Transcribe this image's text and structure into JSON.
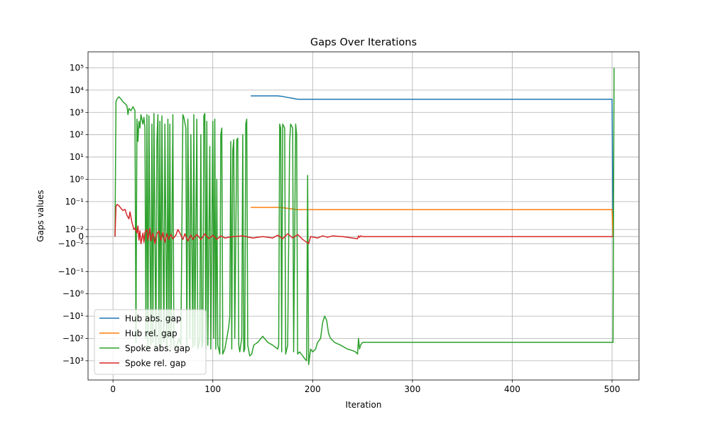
{
  "chart_data": {
    "type": "line",
    "title": "Gaps Over Iterations",
    "x_label": "Iteration",
    "y_label": "Gaps values",
    "yscale": "symlog",
    "linthresh": 0.035,
    "grid": true,
    "legend": "lower left",
    "xlim": [
      -25,
      527
    ],
    "xticks": [
      0,
      100,
      200,
      300,
      400,
      500
    ],
    "ylim": [
      -7300,
      520000
    ],
    "yticks": [
      {
        "value": 100000,
        "label": "10⁵"
      },
      {
        "value": 10000,
        "label": "10⁴"
      },
      {
        "value": 1000,
        "label": "10³"
      },
      {
        "value": 100,
        "label": "10²"
      },
      {
        "value": 10,
        "label": "10¹"
      },
      {
        "value": 1,
        "label": "10⁰"
      },
      {
        "value": 0.1,
        "label": "10⁻¹"
      },
      {
        "value": 0.01,
        "label": "10⁻²"
      },
      0,
      {
        "value": -0.01,
        "label": "−10⁻²"
      },
      {
        "value": -0.1,
        "label": "−10⁻¹"
      },
      {
        "value": -1,
        "label": "−10⁰"
      },
      {
        "value": -10,
        "label": "−10¹"
      },
      {
        "value": -100,
        "label": "−10²"
      },
      {
        "value": -1000,
        "label": "−10³"
      }
    ],
    "series": [
      {
        "name": "Hub abs. gap",
        "color": "#1f77b4",
        "x": [
          138,
          165,
          170,
          175,
          180,
          185,
          500,
          501
        ],
        "values": [
          5500,
          5500,
          5200,
          4700,
          4300,
          3900,
          3900,
          0
        ]
      },
      {
        "name": "Hub rel. gap",
        "color": "#ff7f0e",
        "x": [
          138,
          167,
          172,
          178,
          185,
          500,
          501
        ],
        "values": [
          0.055,
          0.055,
          0.052,
          0.048,
          0.044,
          0.044,
          0
        ]
      },
      {
        "name": "Spoke abs. gap",
        "color": "#2ca02c",
        "x": [
          2,
          3,
          4,
          6,
          8,
          10,
          12,
          14,
          15,
          16,
          18,
          20,
          21,
          22,
          23,
          24,
          25,
          26,
          27,
          28,
          30,
          31,
          32,
          33,
          34,
          35,
          36,
          38,
          39,
          40,
          41,
          43,
          44,
          45,
          46,
          47,
          48,
          49,
          51,
          52,
          54,
          55,
          56,
          57,
          58,
          60,
          61,
          63,
          66,
          68,
          70,
          71,
          73,
          74,
          75,
          77,
          78,
          80,
          81,
          82,
          84,
          85,
          87,
          88,
          89,
          90,
          91,
          92,
          93,
          94,
          95,
          97,
          98,
          100,
          101,
          102,
          103,
          104,
          105,
          106,
          107,
          108,
          109,
          110,
          112,
          114,
          116,
          117,
          118,
          119,
          120,
          121,
          122,
          124,
          125,
          126,
          127,
          129,
          130,
          131,
          132,
          133,
          134,
          135,
          137,
          139,
          141,
          145,
          150,
          155,
          160,
          165,
          166,
          167,
          168,
          169,
          170,
          172,
          173,
          175,
          177,
          178,
          180,
          181,
          183,
          184,
          185,
          187,
          190,
          192,
          194,
          195,
          196,
          198,
          200,
          203,
          205,
          208,
          210,
          212,
          214,
          216,
          218,
          222,
          228,
          235,
          240,
          243,
          245,
          246,
          247,
          248,
          250,
          501,
          502
        ],
        "values": [
          0,
          3000,
          4000,
          5000,
          4000,
          3000,
          2500,
          2000,
          800,
          1500,
          1200,
          1800,
          1500,
          1200,
          -150,
          500,
          50,
          400,
          200,
          800,
          300,
          600,
          200,
          -100,
          800,
          -300,
          700,
          -200,
          300,
          -150,
          900,
          -300,
          50,
          800,
          -200,
          400,
          -300,
          700,
          -150,
          300,
          -250,
          500,
          -100,
          300,
          -300,
          800,
          -200,
          -300,
          -100,
          -200,
          800,
          600,
          200,
          -300,
          500,
          -100,
          100,
          -250,
          800,
          -200,
          500,
          -300,
          -100,
          100,
          -250,
          -150,
          700,
          900,
          -300,
          400,
          -200,
          30,
          -300,
          400,
          -100,
          500,
          -300,
          1,
          -200,
          -300,
          -500,
          100,
          200,
          -500,
          -300,
          -100,
          -30,
          -10,
          50,
          -300,
          20,
          60,
          -100,
          60,
          70,
          -200,
          -400,
          -100,
          100,
          -400,
          -300,
          300,
          500,
          -200,
          -600,
          -500,
          -200,
          -150,
          -80,
          -150,
          -200,
          -300,
          -200,
          300,
          200,
          -400,
          300,
          200,
          -500,
          -200,
          50,
          300,
          200,
          -400,
          300,
          100,
          -500,
          -400,
          -600,
          -800,
          -1000,
          1.5,
          -1500,
          -300,
          -400,
          -300,
          -150,
          -100,
          -20,
          -10,
          -15,
          -60,
          -100,
          -150,
          -200,
          -300,
          -350,
          -400,
          -500,
          -100,
          -300,
          -200,
          -150,
          -150,
          100000
        ]
      },
      {
        "name": "Spoke rel. gap",
        "color": "#d62728",
        "x": [
          2,
          3,
          4,
          5,
          6,
          8,
          10,
          12,
          14,
          16,
          17,
          19,
          20,
          21,
          22,
          24,
          25,
          26,
          27,
          28,
          30,
          31,
          32,
          34,
          35,
          37,
          38,
          40,
          42,
          44,
          46,
          48,
          50,
          52,
          54,
          56,
          58,
          60,
          63,
          65,
          67,
          70,
          72,
          75,
          78,
          80,
          84,
          88,
          92,
          96,
          100,
          104,
          108,
          112,
          120,
          130,
          140,
          150,
          160,
          165,
          170,
          175,
          180,
          185,
          190,
          194,
          196,
          198,
          205,
          210,
          215,
          220,
          230,
          240,
          245,
          246,
          247,
          248,
          250,
          501
        ],
        "values": [
          0,
          0.06,
          0.075,
          0.07,
          0.065,
          0.05,
          0.04,
          0.045,
          0.03,
          0.025,
          0.035,
          0.02,
          0.015,
          0.01,
          0.012,
          0.005,
          0.015,
          -0.005,
          0.008,
          -0.01,
          0.005,
          -0.008,
          0.006,
          0.01,
          -0.005,
          0.012,
          -0.006,
          0.005,
          -0.01,
          0.004,
          0.008,
          -0.005,
          0.006,
          -0.008,
          0.004,
          -0.004,
          0.003,
          -0.003,
          0.002,
          0.01,
          0.005,
          -0.004,
          0.004,
          -0.006,
          0.002,
          -0.004,
          0.003,
          -0.004,
          0.004,
          -0.003,
          0.002,
          -0.004,
          0.001,
          -0.002,
          0,
          0.001,
          -0.002,
          0,
          -0.002,
          0.002,
          -0.003,
          0.004,
          -0.002,
          0.003,
          -0.004,
          -0.008,
          -0.01,
          0,
          -0.002,
          0.001,
          -0.001,
          0.001,
          0,
          -0.002,
          -0.003,
          0.001,
          -0.001,
          0.001,
          0,
          0
        ]
      }
    ]
  }
}
